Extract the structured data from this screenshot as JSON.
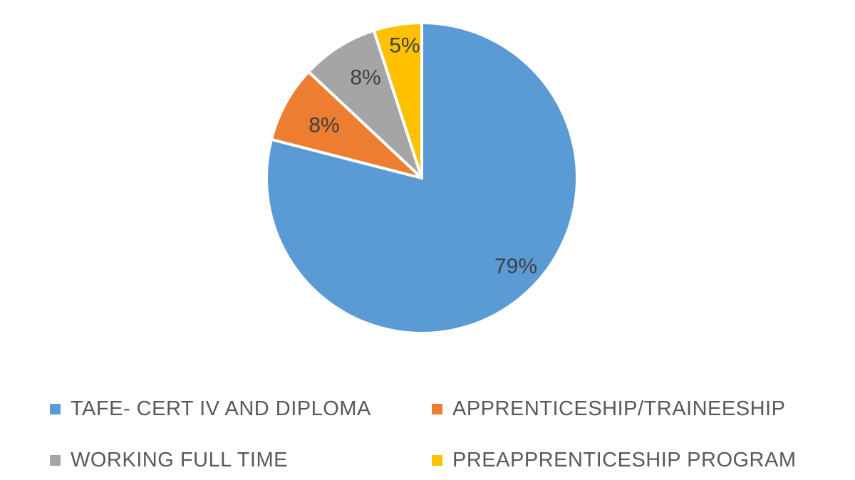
{
  "chart_data": {
    "type": "pie",
    "title": "",
    "start_angle_deg": 0,
    "direction": "clockwise",
    "legend_position": "bottom",
    "slices": [
      {
        "label": "TAFE- CERT IV AND DIPLOMA",
        "value": 79,
        "data_label": "79%",
        "color": "#5B9BD5"
      },
      {
        "label": "APPRENTICESHIP/TRAINEESHIP",
        "value": 8,
        "data_label": "8%",
        "color": "#ED7D31"
      },
      {
        "label": "WORKING FULL TIME",
        "value": 8,
        "data_label": "8%",
        "color": "#A5A5A5"
      },
      {
        "label": "PREAPPRENTICESHIP PROGRAM",
        "value": 5,
        "data_label": "5%",
        "color": "#FFC000"
      }
    ]
  }
}
